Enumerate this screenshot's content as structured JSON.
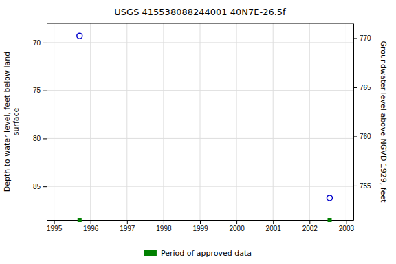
{
  "chart_data": {
    "type": "scatter",
    "title": "USGS 415538088244001 40N7E-26.5f",
    "x": [
      1995.7,
      2002.55
    ],
    "series": [
      {
        "color": "#0000cc",
        "marker": "circle",
        "values": [
          69.3,
          86.2
        ]
      },
      {
        "name": "Period of approved data",
        "color": "#008000",
        "marker": "square",
        "values": [
          88.5,
          88.5
        ]
      }
    ],
    "xlim": [
      1994.8,
      2003.2
    ],
    "xticks": [
      1995,
      1996,
      1997,
      1998,
      1999,
      2000,
      2001,
      2002,
      2003
    ],
    "ylim": [
      88.5,
      68.0
    ],
    "yticks": [
      70,
      75,
      80,
      85
    ],
    "y2lim": [
      751.5,
      771.5
    ],
    "y2ticks": [
      755,
      760,
      765,
      770
    ],
    "ylabel": "Depth to water level, feet below land\n surface",
    "y2label": "Groundwater level above NGVD 1929, feet",
    "grid": true,
    "legend": "bottom"
  }
}
